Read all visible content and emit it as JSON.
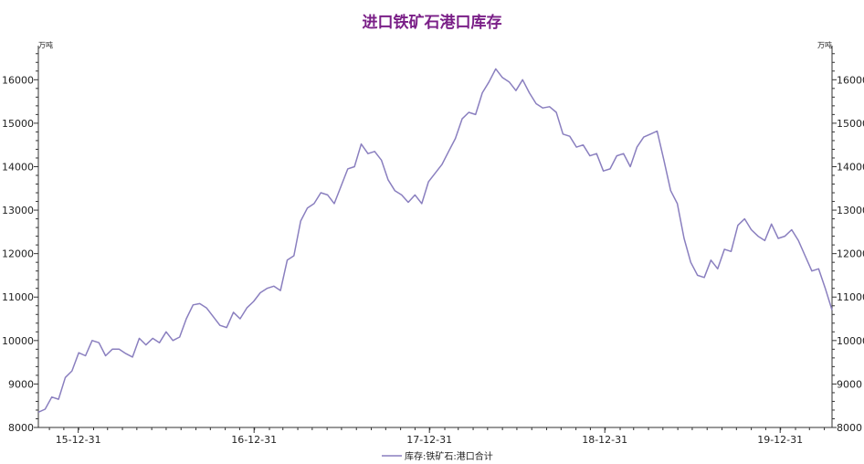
{
  "chart_data": {
    "type": "line",
    "title": "进口铁矿石港口库存",
    "y_unit_left": "万吨",
    "y_unit_right": "万吨",
    "ylim": [
      8000,
      16700
    ],
    "yticks": [
      8000,
      9000,
      10000,
      11000,
      12000,
      13000,
      14000,
      15000,
      16000
    ],
    "xlim": [
      "2015-10-09",
      "2020-04-17"
    ],
    "xticks": [
      {
        "date": "2015-12-31",
        "label": "15-12-31"
      },
      {
        "date": "2016-12-31",
        "label": "16-12-31"
      },
      {
        "date": "2017-12-31",
        "label": "17-12-31"
      },
      {
        "date": "2018-12-31",
        "label": "18-12-31"
      },
      {
        "date": "2019-12-31",
        "label": "19-12-31"
      }
    ],
    "legend": "bottom-center",
    "series": [
      {
        "name": "库存:铁矿石:港口合计",
        "color": "#8a7fbf",
        "points": [
          [
            "2015-10-09",
            8350
          ],
          [
            "2015-10-23",
            8420
          ],
          [
            "2015-11-06",
            8700
          ],
          [
            "2015-11-20",
            8650
          ],
          [
            "2015-12-04",
            9150
          ],
          [
            "2015-12-18",
            9300
          ],
          [
            "2016-01-01",
            9720
          ],
          [
            "2016-01-15",
            9650
          ],
          [
            "2016-01-29",
            10000
          ],
          [
            "2016-02-12",
            9950
          ],
          [
            "2016-02-26",
            9650
          ],
          [
            "2016-03-11",
            9800
          ],
          [
            "2016-03-25",
            9800
          ],
          [
            "2016-04-08",
            9700
          ],
          [
            "2016-04-22",
            9620
          ],
          [
            "2016-05-06",
            10050
          ],
          [
            "2016-05-20",
            9900
          ],
          [
            "2016-06-03",
            10050
          ],
          [
            "2016-06-17",
            9950
          ],
          [
            "2016-07-01",
            10200
          ],
          [
            "2016-07-15",
            10000
          ],
          [
            "2016-07-29",
            10080
          ],
          [
            "2016-08-12",
            10500
          ],
          [
            "2016-08-26",
            10820
          ],
          [
            "2016-09-09",
            10850
          ],
          [
            "2016-09-23",
            10750
          ],
          [
            "2016-10-07",
            10550
          ],
          [
            "2016-10-21",
            10350
          ],
          [
            "2016-11-04",
            10300
          ],
          [
            "2016-11-18",
            10650
          ],
          [
            "2016-12-02",
            10500
          ],
          [
            "2016-12-16",
            10750
          ],
          [
            "2016-12-30",
            10900
          ],
          [
            "2017-01-13",
            11100
          ],
          [
            "2017-01-27",
            11200
          ],
          [
            "2017-02-10",
            11250
          ],
          [
            "2017-02-24",
            11150
          ],
          [
            "2017-03-10",
            11850
          ],
          [
            "2017-03-24",
            11950
          ],
          [
            "2017-04-07",
            12750
          ],
          [
            "2017-04-21",
            13050
          ],
          [
            "2017-05-05",
            13150
          ],
          [
            "2017-05-19",
            13400
          ],
          [
            "2017-06-02",
            13350
          ],
          [
            "2017-06-16",
            13150
          ],
          [
            "2017-06-30",
            13550
          ],
          [
            "2017-07-14",
            13950
          ],
          [
            "2017-07-28",
            14000
          ],
          [
            "2017-08-11",
            14520
          ],
          [
            "2017-08-25",
            14300
          ],
          [
            "2017-09-08",
            14350
          ],
          [
            "2017-09-22",
            14150
          ],
          [
            "2017-10-06",
            13700
          ],
          [
            "2017-10-20",
            13450
          ],
          [
            "2017-11-03",
            13350
          ],
          [
            "2017-11-17",
            13180
          ],
          [
            "2017-12-01",
            13350
          ],
          [
            "2017-12-15",
            13150
          ],
          [
            "2017-12-29",
            13650
          ],
          [
            "2018-01-12",
            13850
          ],
          [
            "2018-01-26",
            14050
          ],
          [
            "2018-02-09",
            14350
          ],
          [
            "2018-02-23",
            14650
          ],
          [
            "2018-03-09",
            15100
          ],
          [
            "2018-03-23",
            15250
          ],
          [
            "2018-04-06",
            15200
          ],
          [
            "2018-04-20",
            15700
          ],
          [
            "2018-05-04",
            15950
          ],
          [
            "2018-05-18",
            16250
          ],
          [
            "2018-06-01",
            16050
          ],
          [
            "2018-06-15",
            15950
          ],
          [
            "2018-06-29",
            15750
          ],
          [
            "2018-07-13",
            16000
          ],
          [
            "2018-07-27",
            15700
          ],
          [
            "2018-08-10",
            15450
          ],
          [
            "2018-08-24",
            15350
          ],
          [
            "2018-09-07",
            15380
          ],
          [
            "2018-09-21",
            15250
          ],
          [
            "2018-10-05",
            14750
          ],
          [
            "2018-10-19",
            14700
          ],
          [
            "2018-11-02",
            14450
          ],
          [
            "2018-11-16",
            14500
          ],
          [
            "2018-11-30",
            14250
          ],
          [
            "2018-12-14",
            14300
          ],
          [
            "2018-12-28",
            13900
          ],
          [
            "2019-01-11",
            13950
          ],
          [
            "2019-01-25",
            14250
          ],
          [
            "2019-02-08",
            14300
          ],
          [
            "2019-02-22",
            14000
          ],
          [
            "2019-03-08",
            14450
          ],
          [
            "2019-03-22",
            14680
          ],
          [
            "2019-04-05",
            14750
          ],
          [
            "2019-04-19",
            14820
          ],
          [
            "2019-05-03",
            14150
          ],
          [
            "2019-05-17",
            13450
          ],
          [
            "2019-05-31",
            13150
          ],
          [
            "2019-06-14",
            12350
          ],
          [
            "2019-06-28",
            11800
          ],
          [
            "2019-07-12",
            11500
          ],
          [
            "2019-07-26",
            11450
          ],
          [
            "2019-08-09",
            11850
          ],
          [
            "2019-08-23",
            11650
          ],
          [
            "2019-09-06",
            12100
          ],
          [
            "2019-09-20",
            12050
          ],
          [
            "2019-10-04",
            12650
          ],
          [
            "2019-10-18",
            12800
          ],
          [
            "2019-11-01",
            12550
          ],
          [
            "2019-11-15",
            12400
          ],
          [
            "2019-11-29",
            12300
          ],
          [
            "2019-12-13",
            12680
          ],
          [
            "2019-12-27",
            12350
          ],
          [
            "2020-01-10",
            12400
          ],
          [
            "2020-01-24",
            12550
          ],
          [
            "2020-02-07",
            12300
          ],
          [
            "2020-02-21",
            11950
          ],
          [
            "2020-03-06",
            11600
          ],
          [
            "2020-03-20",
            11650
          ],
          [
            "2020-04-03",
            11200
          ],
          [
            "2020-04-17",
            10700
          ]
        ]
      }
    ]
  }
}
